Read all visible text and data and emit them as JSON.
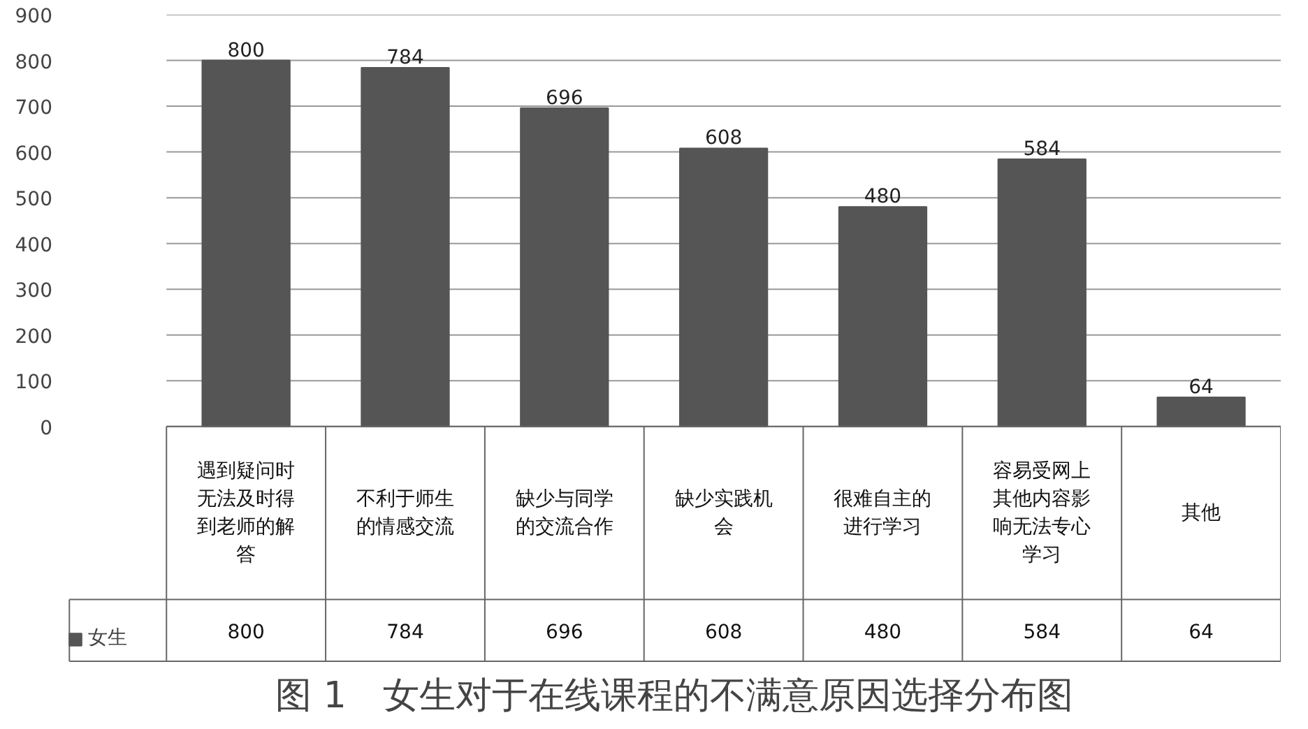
{
  "chart_data": {
    "type": "bar",
    "title": "图 1　女生对于在线课程的不满意原因选择分布图",
    "categories": [
      "遇到疑问时无法及时得到老师的解答",
      "不利于师生的情感交流",
      "缺少与同学的交流合作",
      "缺少实践机会",
      "很难自主的进行学习",
      "容易受网上其他内容影响无法专心学习",
      "其他"
    ],
    "series": [
      {
        "name": "女生",
        "color": "#555555",
        "values": [
          800,
          784,
          696,
          608,
          480,
          584,
          64
        ],
        "value_labels": [
          "800",
          "784",
          "696",
          "608",
          "480",
          "584",
          "64"
        ]
      }
    ],
    "ylim": [
      0,
      900
    ],
    "yticks": [
      0,
      100,
      200,
      300,
      400,
      500,
      600,
      700,
      800,
      900
    ],
    "grid": "y",
    "data_labels": true,
    "legend": "bottom"
  }
}
